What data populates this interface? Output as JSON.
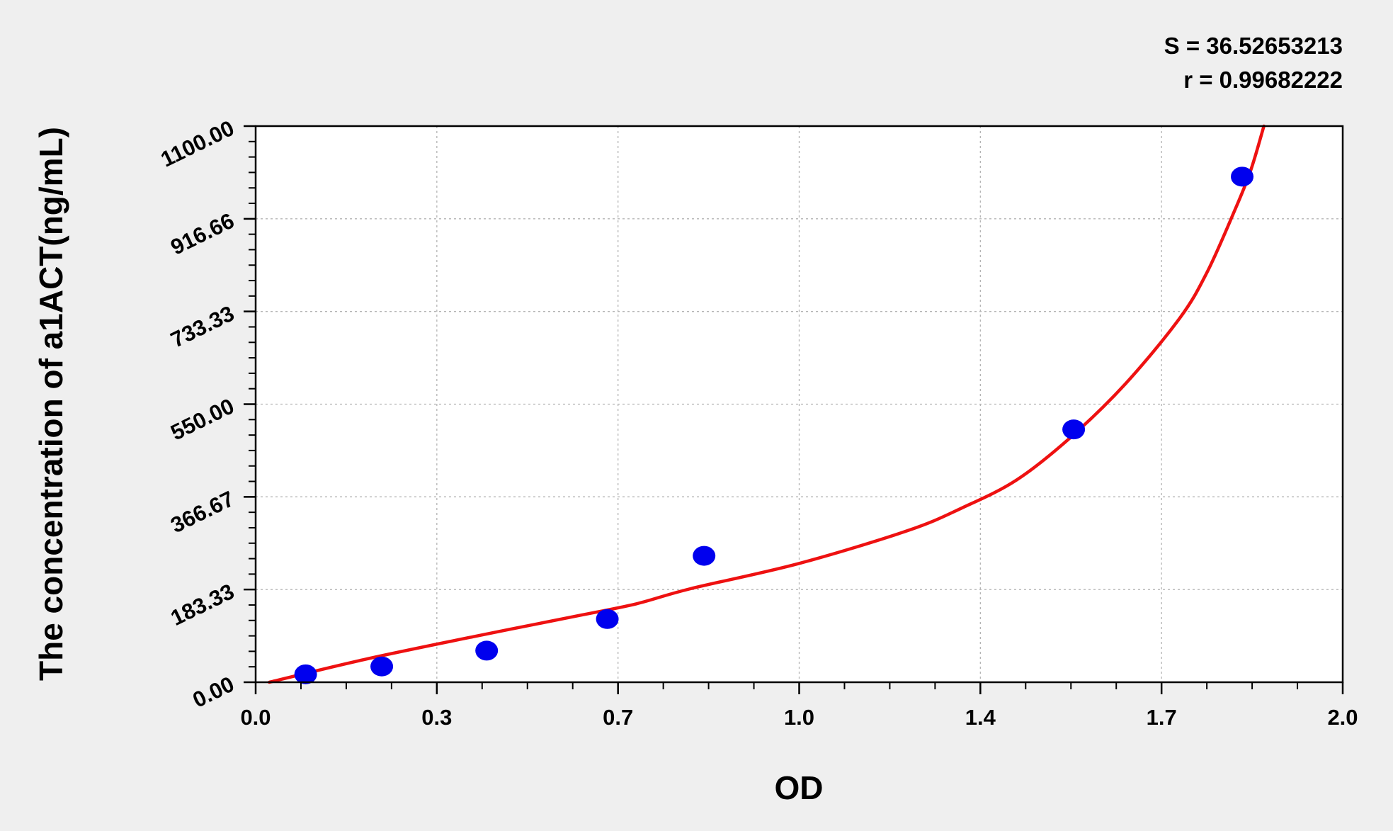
{
  "chart_data": {
    "type": "scatter",
    "xlabel": "OD",
    "ylabel": "The concentration of  a1ACT(ng/mL)",
    "xlim": [
      0.0,
      2.0
    ],
    "ylim": [
      0.0,
      1100.0
    ],
    "x_ticks": [
      "0.0",
      "0.3",
      "0.7",
      "1.0",
      "1.4",
      "1.7",
      "2.0"
    ],
    "y_ticks": [
      "0.00",
      "183.33",
      "366.67",
      "550.00",
      "733.33",
      "916.66",
      "1100.00"
    ],
    "grid": true,
    "stats": {
      "s_label": "S = 36.52653213",
      "r_label": "r = 0.99682222"
    },
    "series": [
      {
        "kind": "points",
        "color": "#0000ee",
        "x": [
          0.092,
          0.232,
          0.425,
          0.647,
          0.825,
          1.505,
          1.815
        ],
        "y": [
          15.6,
          31.2,
          62.5,
          125,
          250,
          500,
          1000
        ]
      },
      {
        "kind": "fit-curve",
        "color": "#ee1111",
        "x_start": 0.025,
        "x_end": 1.855,
        "curve_x": [
          0.025,
          0.2,
          0.4,
          0.6,
          0.7,
          0.8,
          1.0,
          1.2,
          1.3,
          1.4,
          1.5,
          1.6,
          1.7,
          1.75,
          1.8,
          1.83,
          1.855
        ],
        "curve_y": [
          0,
          45,
          90,
          133,
          155,
          185,
          235,
          300,
          345,
          400,
          485,
          590,
          720,
          810,
          930,
          1010,
          1100
        ]
      }
    ]
  }
}
